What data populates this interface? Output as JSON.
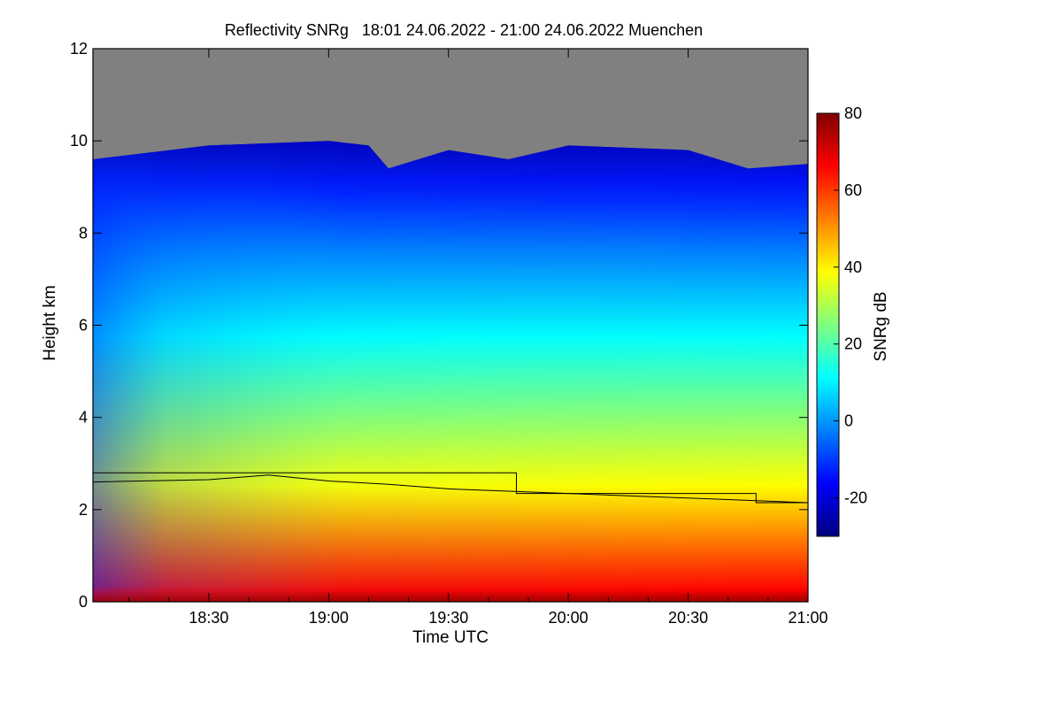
{
  "chart_data": {
    "type": "heatmap",
    "title": "Reflectivity SNRg   18:01 24.06.2022 - 21:00 24.06.2022 Muenchen",
    "xlabel": "Time UTC",
    "ylabel": "Height km",
    "colorbar_label": "SNRg dB",
    "x_range": [
      "18:01",
      "21:00"
    ],
    "x_ticks": [
      "18:30",
      "19:00",
      "19:30",
      "20:00",
      "20:30",
      "21:00"
    ],
    "ylim": [
      0,
      12
    ],
    "y_ticks": [
      "0",
      "2",
      "4",
      "6",
      "8",
      "10",
      "12"
    ],
    "colorbar_range": [
      -30,
      80
    ],
    "colorbar_ticks": [
      "-20",
      "0",
      "20",
      "40",
      "60",
      "80"
    ],
    "no_signal_color": "#808080",
    "colormap": [
      "#00007f",
      "#0000ff",
      "#007fff",
      "#00ffff",
      "#7fff7f",
      "#ffff00",
      "#ff7f00",
      "#ff0000",
      "#7f0000"
    ],
    "cloud_top_km": [
      {
        "time": "18:01",
        "km": 9.6
      },
      {
        "time": "18:30",
        "km": 9.9
      },
      {
        "time": "19:00",
        "km": 10.0
      },
      {
        "time": "19:10",
        "km": 9.9
      },
      {
        "time": "19:15",
        "km": 9.4
      },
      {
        "time": "19:30",
        "km": 9.8
      },
      {
        "time": "19:45",
        "km": 9.6
      },
      {
        "time": "20:00",
        "km": 9.9
      },
      {
        "time": "20:30",
        "km": 9.8
      },
      {
        "time": "20:45",
        "km": 9.4
      },
      {
        "time": "21:00",
        "km": 9.5
      }
    ],
    "mixing_layer_height_km": [
      {
        "time": "18:01",
        "km": 2.6
      },
      {
        "time": "18:30",
        "km": 2.65
      },
      {
        "time": "18:45",
        "km": 2.75
      },
      {
        "time": "19:00",
        "km": 2.62
      },
      {
        "time": "19:15",
        "km": 2.55
      },
      {
        "time": "19:30",
        "km": 2.45
      },
      {
        "time": "19:45",
        "km": 2.4
      },
      {
        "time": "20:00",
        "km": 2.35
      },
      {
        "time": "20:15",
        "km": 2.3
      },
      {
        "time": "20:30",
        "km": 2.25
      },
      {
        "time": "20:45",
        "km": 2.2
      },
      {
        "time": "21:00",
        "km": 2.15
      }
    ],
    "step_line_km": [
      {
        "time": "18:01",
        "km": 2.8
      },
      {
        "time": "19:47",
        "km": 2.8
      },
      {
        "time": "19:47",
        "km": 2.35
      },
      {
        "time": "20:47",
        "km": 2.35
      },
      {
        "time": "20:47",
        "km": 2.15
      },
      {
        "time": "21:00",
        "km": 2.15
      }
    ]
  }
}
